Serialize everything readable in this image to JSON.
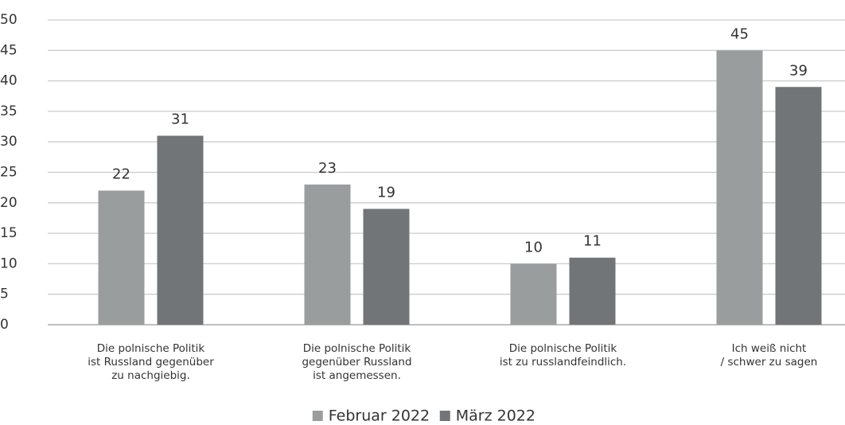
{
  "chart_data": {
    "type": "bar",
    "categories": [
      "Die polnische Politik\nist Russland gegenüber\nzu nachgiebig.",
      "Die polnische Politik\ngegenüber Russland\nist angemessen.",
      "Die polnische Politik\nist zu russlandfeindlich.",
      "Ich weiß nicht\n/ schwer zu sagen"
    ],
    "series": [
      {
        "name": "Februar 2022",
        "color": "#9a9d9d",
        "values": [
          22,
          23,
          10,
          45
        ]
      },
      {
        "name": "März 2022",
        "color": "#727578",
        "values": [
          31,
          19,
          11,
          39
        ]
      }
    ],
    "ylim": [
      0,
      50
    ],
    "yticks": [
      0,
      5,
      10,
      15,
      20,
      25,
      30,
      35,
      40,
      45,
      50
    ],
    "grid": true
  }
}
